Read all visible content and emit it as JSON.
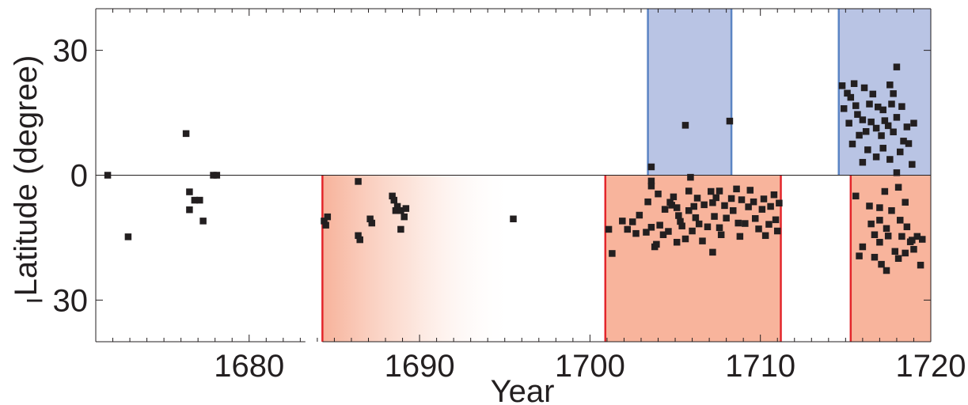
{
  "chart_data": {
    "type": "scatter",
    "title": "",
    "xlabel": "Year",
    "ylabel": "Latitude (degree)",
    "xlim": [
      1671,
      1720
    ],
    "ylim": [
      -40,
      40
    ],
    "x_ticks": [
      1680,
      1690,
      1700,
      1710,
      1720
    ],
    "x_tick_labels": [
      "1680",
      "1690",
      "1700",
      "1710",
      "1720"
    ],
    "y_ticks": [
      30,
      0,
      -30
    ],
    "y_tick_labels": [
      "30",
      "0",
      "− 30"
    ],
    "grid": false,
    "legend": "none",
    "colors": {
      "marker": "#231f20",
      "blue_fill": "#b9c4e4",
      "blue_edge": "#5b84c4",
      "red_fill": "#f8b49c",
      "red_edge": "#e3262b",
      "axis": "#231f20"
    },
    "shaded_regions": [
      {
        "kind": "blue",
        "x0": 1703.4,
        "x1": 1708.3,
        "y0": 0,
        "y1": 40
      },
      {
        "kind": "blue",
        "x0": 1714.6,
        "x1": 1720,
        "y0": 0,
        "y1": 40
      },
      {
        "kind": "red_gradient",
        "x0": 1684.3,
        "x1": 1695.5,
        "y0": -40,
        "y1": 0
      },
      {
        "kind": "red",
        "x0": 1700.9,
        "x1": 1711.2,
        "y0": -40,
        "y1": 0
      },
      {
        "kind": "red",
        "x0": 1715.3,
        "x1": 1720,
        "y0": -40,
        "y1": 0
      }
    ],
    "series": [
      {
        "points": [
          [
            1671.7,
            0
          ],
          [
            1672.9,
            -14.8
          ],
          [
            1676.3,
            10
          ],
          [
            1676.5,
            -4
          ],
          [
            1676.5,
            -8.3
          ],
          [
            1676.8,
            -6
          ],
          [
            1677.1,
            -6
          ],
          [
            1677.3,
            -11
          ],
          [
            1677.9,
            0
          ],
          [
            1678.1,
            0
          ],
          [
            1684.4,
            -11
          ],
          [
            1684.5,
            -12
          ],
          [
            1684.6,
            -10
          ],
          [
            1686.4,
            -1.5
          ],
          [
            1686.4,
            -14.5
          ],
          [
            1686.5,
            -15.5
          ],
          [
            1687.1,
            -10.5
          ],
          [
            1687.2,
            -11.5
          ],
          [
            1688.4,
            -5
          ],
          [
            1688.5,
            -6
          ],
          [
            1688.6,
            -8.5
          ],
          [
            1688.7,
            -7.5
          ],
          [
            1688.9,
            -8.5
          ],
          [
            1688.9,
            -13
          ],
          [
            1689.1,
            -10
          ],
          [
            1689.2,
            -8
          ],
          [
            1695.5,
            -10.5
          ],
          [
            1701.1,
            -13
          ],
          [
            1701.3,
            -18.8
          ],
          [
            1701.9,
            -11
          ],
          [
            1702.2,
            -13
          ],
          [
            1702.5,
            -11.2
          ],
          [
            1702.7,
            -14
          ],
          [
            1702.9,
            -9.6
          ],
          [
            1703.3,
            -13.7
          ],
          [
            1703.4,
            -6.4
          ],
          [
            1703.6,
            2
          ],
          [
            1703.6,
            -1.4
          ],
          [
            1703.6,
            -2.6
          ],
          [
            1703.6,
            -12.5
          ],
          [
            1703.8,
            -17.2
          ],
          [
            1703.9,
            -16.6
          ],
          [
            1704.0,
            -4.5
          ],
          [
            1704.1,
            -12
          ],
          [
            1704.3,
            -14.3
          ],
          [
            1704.4,
            -8.2
          ],
          [
            1704.6,
            -13.5
          ],
          [
            1704.7,
            -6.5
          ],
          [
            1704.8,
            -7.2
          ],
          [
            1704.9,
            -5.2
          ],
          [
            1705.1,
            -7.8
          ],
          [
            1705.1,
            -16.1
          ],
          [
            1705.2,
            -9.7
          ],
          [
            1705.3,
            -11.1
          ],
          [
            1705.4,
            -12.2
          ],
          [
            1705.6,
            -15.3
          ],
          [
            1705.6,
            12
          ],
          [
            1705.8,
            -3.8
          ],
          [
            1705.8,
            -8.5
          ],
          [
            1705.9,
            -0.5
          ],
          [
            1706.0,
            -13.4
          ],
          [
            1706.1,
            -7.5
          ],
          [
            1706.2,
            -10.2
          ],
          [
            1706.3,
            -5.5
          ],
          [
            1706.4,
            -11.7
          ],
          [
            1706.6,
            -15.8
          ],
          [
            1706.7,
            -7.1
          ],
          [
            1706.9,
            -12.4
          ],
          [
            1707.1,
            -3.9
          ],
          [
            1707.2,
            -6.6
          ],
          [
            1707.2,
            -18.5
          ],
          [
            1707.3,
            -9.9
          ],
          [
            1707.4,
            -5.4
          ],
          [
            1707.6,
            -12.6
          ],
          [
            1707.6,
            -3.8
          ],
          [
            1707.7,
            -14.3
          ],
          [
            1707.9,
            -7.3
          ],
          [
            1708.0,
            -10.3
          ],
          [
            1708.2,
            13
          ],
          [
            1708.3,
            -5.6
          ],
          [
            1708.4,
            -8.5
          ],
          [
            1708.6,
            -3.3
          ],
          [
            1708.7,
            -11.5
          ],
          [
            1708.8,
            -14.7
          ],
          [
            1708.9,
            -5.9
          ],
          [
            1709.1,
            -11.6
          ],
          [
            1709.3,
            -7.6
          ],
          [
            1709.4,
            -3.6
          ],
          [
            1709.6,
            -6.4
          ],
          [
            1709.7,
            -10.4
          ],
          [
            1709.9,
            -12.9
          ],
          [
            1710.1,
            -8.2
          ],
          [
            1710.2,
            -5.7
          ],
          [
            1710.3,
            -14.5
          ],
          [
            1710.5,
            -11.8
          ],
          [
            1710.6,
            -7.5
          ],
          [
            1710.8,
            -4.7
          ],
          [
            1710.9,
            -10.7
          ],
          [
            1711.0,
            -13.4
          ],
          [
            1711.1,
            -6.7
          ],
          [
            1714.8,
            21.5
          ],
          [
            1714.9,
            16
          ],
          [
            1715.1,
            19.7
          ],
          [
            1715.2,
            12.5
          ],
          [
            1715.3,
            18.7
          ],
          [
            1715.4,
            7.5
          ],
          [
            1715.5,
            22
          ],
          [
            1715.6,
            -5
          ],
          [
            1715.6,
            16.7
          ],
          [
            1715.7,
            14.6
          ],
          [
            1715.8,
            9.6
          ],
          [
            1715.8,
            -19.4
          ],
          [
            1716.0,
            13.3
          ],
          [
            1716.0,
            3.1
          ],
          [
            1716.0,
            -17.2
          ],
          [
            1716.1,
            21
          ],
          [
            1716.2,
            10.5
          ],
          [
            1716.3,
            6.1
          ],
          [
            1716.4,
            17.1
          ],
          [
            1716.4,
            -7.4
          ],
          [
            1716.5,
            12.8
          ],
          [
            1716.5,
            -11.7
          ],
          [
            1716.6,
            19.5
          ],
          [
            1716.7,
            -14.3
          ],
          [
            1716.7,
            -19.7
          ],
          [
            1716.8,
            11.3
          ],
          [
            1716.8,
            4.4
          ],
          [
            1716.9,
            16.4
          ],
          [
            1717.0,
            -7.8
          ],
          [
            1717.0,
            -10.8
          ],
          [
            1717.0,
            -16.1
          ],
          [
            1717.1,
            9.5
          ],
          [
            1717.1,
            -21.4
          ],
          [
            1717.2,
            15.7
          ],
          [
            1717.2,
            6.5
          ],
          [
            1717.3,
            13.1
          ],
          [
            1717.3,
            -3.9
          ],
          [
            1717.4,
            -12.8
          ],
          [
            1717.4,
            -22.9
          ],
          [
            1717.5,
            11.9
          ],
          [
            1717.5,
            -14.6
          ],
          [
            1717.6,
            21.7
          ],
          [
            1717.6,
            3.8
          ],
          [
            1717.7,
            17.1
          ],
          [
            1717.7,
            -8.5
          ],
          [
            1717.8,
            19.6
          ],
          [
            1717.8,
            10.4
          ],
          [
            1717.9,
            -18.3
          ],
          [
            1718.0,
            26
          ],
          [
            1718.0,
            13.9
          ],
          [
            1718.0,
            0.6
          ],
          [
            1718.1,
            -2.9
          ],
          [
            1718.1,
            -20
          ],
          [
            1718.2,
            5.6
          ],
          [
            1718.2,
            -10.8
          ],
          [
            1718.3,
            16.5
          ],
          [
            1718.3,
            -14.7
          ],
          [
            1718.4,
            8.2
          ],
          [
            1718.5,
            -6.5
          ],
          [
            1718.5,
            -18.7
          ],
          [
            1718.6,
            11.6
          ],
          [
            1718.6,
            -12.4
          ],
          [
            1718.7,
            7.6
          ],
          [
            1718.8,
            -16
          ],
          [
            1718.9,
            2.6
          ],
          [
            1718.9,
            -15.6
          ],
          [
            1719.0,
            12.5
          ],
          [
            1719.0,
            -17.8
          ],
          [
            1719.2,
            -14.7
          ],
          [
            1719.4,
            -21.6
          ],
          [
            1719.5,
            -15.4
          ]
        ]
      }
    ]
  }
}
